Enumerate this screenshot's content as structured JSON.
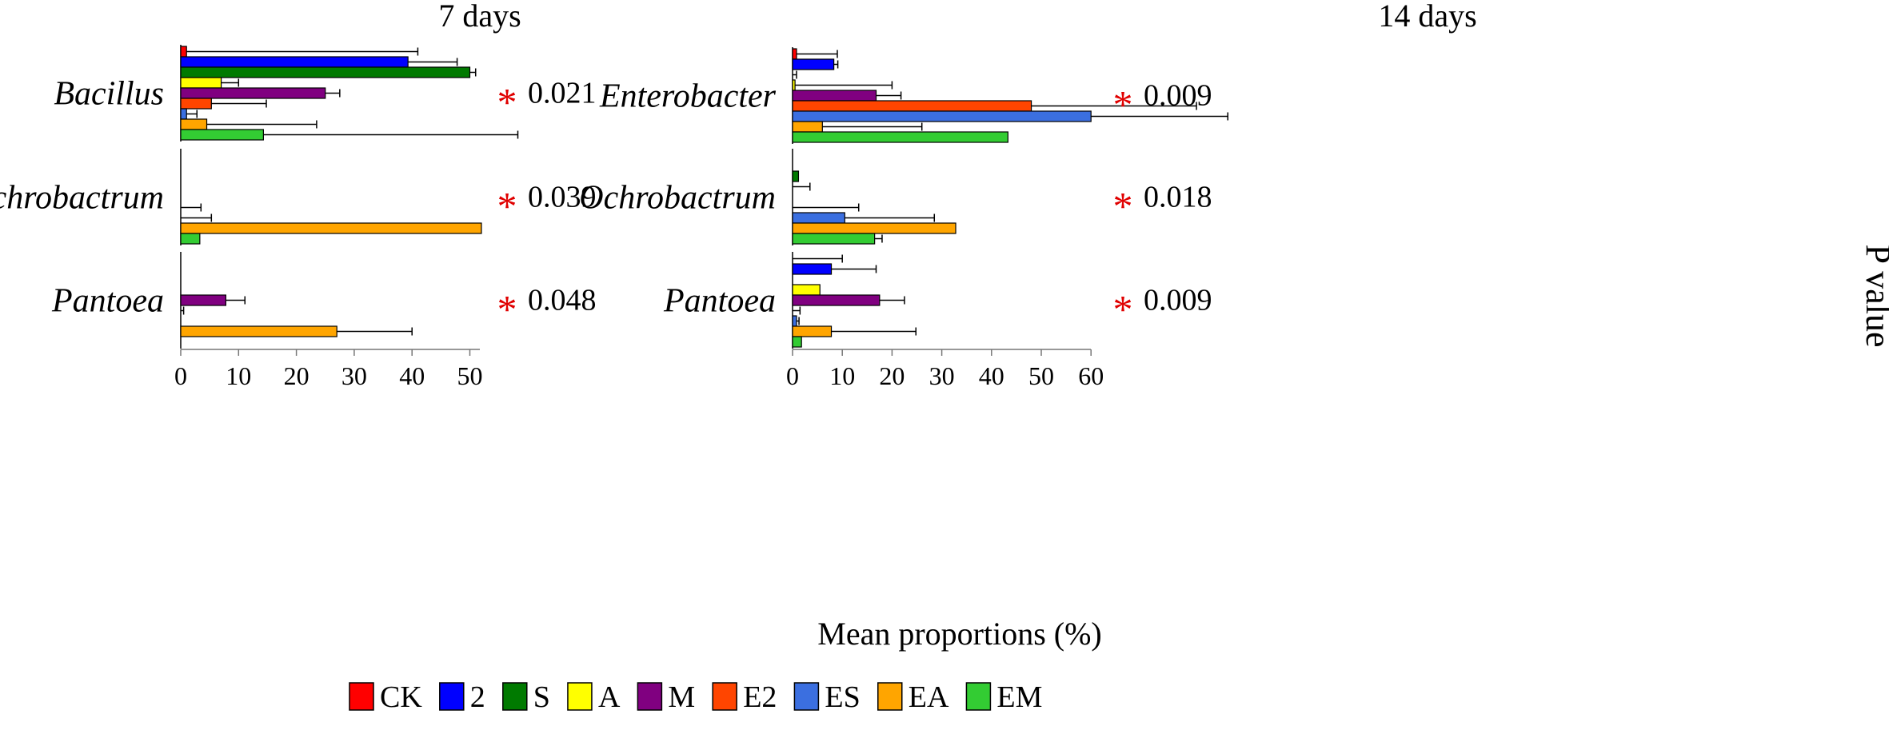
{
  "figure": {
    "xlabel": "Mean proportions (%)",
    "side_label": "P value",
    "series_colors": {
      "CK": "#ff0000",
      "2": "#0000ff",
      "S": "#007a00",
      "A": "#ffff00",
      "M": "#800080",
      "E2": "#ff4500",
      "ES": "#3b6fe0",
      "EA": "#ffa500",
      "EM": "#33cc33"
    }
  },
  "legend": [
    "CK",
    "2",
    "S",
    "A",
    "M",
    "E2",
    "ES",
    "EA",
    "EM"
  ],
  "chart_data": [
    {
      "type": "bar",
      "orientation": "horizontal",
      "title": "7 days",
      "xlabel": "Mean proportions (%)",
      "xlim": [
        0,
        52
      ],
      "xticks": [
        0,
        10,
        20,
        30,
        40,
        50
      ],
      "series_names": [
        "CK",
        "2",
        "S",
        "A",
        "M",
        "E2",
        "ES",
        "EA",
        "EM"
      ],
      "groups": [
        {
          "name": "Bacillus",
          "pvalue": "0.021",
          "significance": "*",
          "values": [
            1.0,
            39.3,
            50.0,
            7.0,
            25.0,
            5.3,
            1.0,
            4.5,
            14.3
          ],
          "errors": [
            40.0,
            8.5,
            1.0,
            3.0,
            2.5,
            9.5,
            1.8,
            19.0,
            44.0
          ]
        },
        {
          "name": "Ochrobactrum",
          "pvalue": "0.039",
          "significance": "*",
          "values": [
            0,
            0,
            0,
            0,
            0,
            0,
            0,
            52.0,
            3.3
          ],
          "errors": [
            0,
            0,
            0,
            0,
            0,
            3.5,
            5.3,
            0,
            0
          ]
        },
        {
          "name": "Pantoea",
          "pvalue": "0.048",
          "significance": "*",
          "values": [
            0,
            0,
            0,
            0,
            7.8,
            0,
            0,
            27.0,
            0
          ],
          "errors": [
            0,
            0,
            0,
            0,
            3.3,
            0.5,
            0,
            13.0,
            0
          ]
        }
      ]
    },
    {
      "type": "bar",
      "orientation": "horizontal",
      "title": "14 days",
      "xlabel": "Mean proportions (%)",
      "xlim": [
        0,
        60
      ],
      "xticks": [
        0,
        10,
        20,
        30,
        40,
        50,
        60
      ],
      "series_names": [
        "CK",
        "2",
        "S",
        "A",
        "M",
        "E2",
        "ES",
        "EA",
        "EM"
      ],
      "groups": [
        {
          "name": "Enterobacter",
          "pvalue": "0.009",
          "significance": "*",
          "values": [
            0.8,
            8.3,
            0,
            0.5,
            16.8,
            48.0,
            60.0,
            6.0,
            43.3
          ],
          "errors": [
            8.2,
            0.8,
            0.8,
            19.5,
            5.0,
            33.2,
            27.5,
            20.0,
            0
          ]
        },
        {
          "name": "Ochrobactrum",
          "pvalue": "0.018",
          "significance": "*",
          "values": [
            0,
            0,
            1.2,
            0,
            0,
            0,
            10.5,
            32.8,
            16.5
          ],
          "errors": [
            0,
            0,
            0,
            3.5,
            0,
            13.3,
            18.0,
            0,
            1.5
          ]
        },
        {
          "name": "Pantoea",
          "pvalue": "0.009",
          "significance": "*",
          "values": [
            0,
            7.8,
            0,
            5.5,
            17.5,
            0,
            0.8,
            7.8,
            1.8
          ],
          "errors": [
            10.0,
            9.0,
            0,
            0,
            5.0,
            1.5,
            0.5,
            17.0,
            0
          ]
        }
      ]
    }
  ]
}
